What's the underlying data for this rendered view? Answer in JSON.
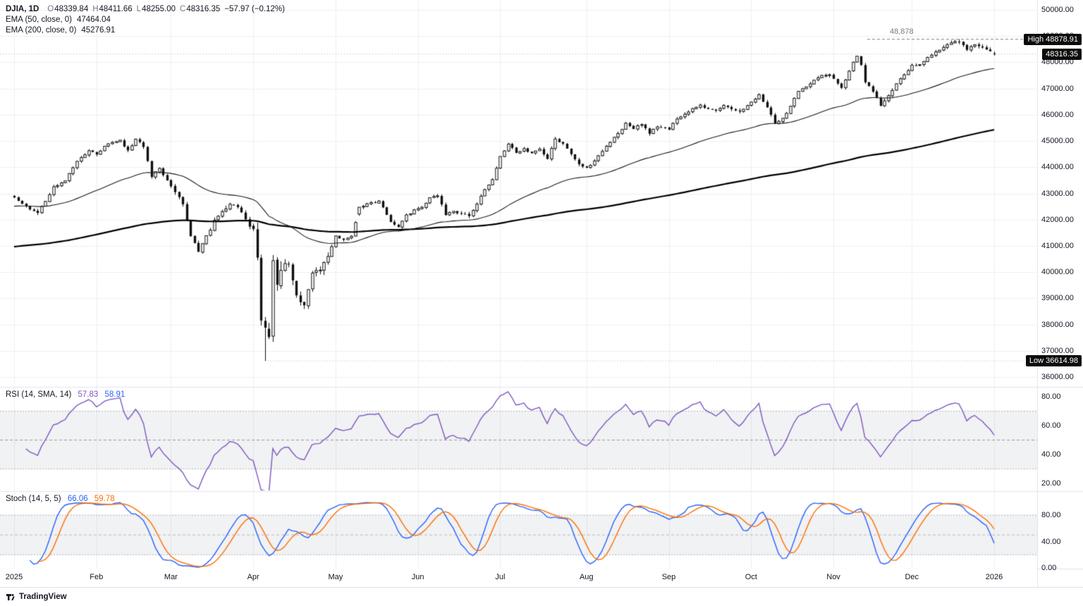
{
  "legend": {
    "symbol": "DJIA, 1D",
    "o_label": "O",
    "o": "48339.84",
    "h_label": "H",
    "h": "48411.66",
    "l_label": "L",
    "l": "48255.00",
    "c_label": "C",
    "c": "48316.35",
    "change": "−57.97 (−0.12%)",
    "ema50_label": "EMA (50, close, 0)",
    "ema50_value": "47464.04",
    "ema200_label": "EMA (200, close, 0)",
    "ema200_value": "45276.91"
  },
  "rsi_panel": {
    "label": "RSI (14, SMA, 14)",
    "value1": "57.83",
    "value2": "58.91",
    "axis": [
      {
        "v": 80,
        "label": "80.00"
      },
      {
        "v": 60,
        "label": "60.00"
      },
      {
        "v": 40,
        "label": "40.00"
      },
      {
        "v": 20,
        "label": "20.00"
      }
    ]
  },
  "stoch_panel": {
    "label": "Stoch (14, 5, 5)",
    "k_value": "66.06",
    "d_value": "59.78",
    "axis": [
      {
        "v": 80,
        "label": "80.00"
      },
      {
        "v": 40,
        "label": "40.00"
      },
      {
        "v": 0,
        "label": "0.00"
      }
    ]
  },
  "price_axis": {
    "ticks": [
      {
        "p": 50000,
        "label": "50000.00"
      },
      {
        "p": 49000,
        "label": "49000.00"
      },
      {
        "p": 48000,
        "label": "48000.00"
      },
      {
        "p": 47000,
        "label": "47000.00"
      },
      {
        "p": 46000,
        "label": "46000.00"
      },
      {
        "p": 45000,
        "label": "45000.00"
      },
      {
        "p": 44000,
        "label": "44000.00"
      },
      {
        "p": 43000,
        "label": "43000.00"
      },
      {
        "p": 42000,
        "label": "42000.00"
      },
      {
        "p": 41000,
        "label": "41000.00"
      },
      {
        "p": 40000,
        "label": "40000.00"
      },
      {
        "p": 39000,
        "label": "39000.00"
      },
      {
        "p": 38000,
        "label": "38000.00"
      },
      {
        "p": 37000,
        "label": "37000.00"
      },
      {
        "p": 36000,
        "label": "36000.00"
      }
    ],
    "high_badge": "High 48878.91",
    "last_badge": "48316.35",
    "low_badge": "Low 36614.98"
  },
  "annotations": {
    "high_level_label": "48,878"
  },
  "time_axis": {
    "labels": [
      {
        "day": 0,
        "label": "2025"
      },
      {
        "day": 21,
        "label": "Feb"
      },
      {
        "day": 40,
        "label": "Mar"
      },
      {
        "day": 61,
        "label": "Apr"
      },
      {
        "day": 82,
        "label": "May"
      },
      {
        "day": 103,
        "label": "Jun"
      },
      {
        "day": 124,
        "label": "Jul"
      },
      {
        "day": 146,
        "label": "Aug"
      },
      {
        "day": 167,
        "label": "Sep"
      },
      {
        "day": 188,
        "label": "Oct"
      },
      {
        "day": 209,
        "label": "Nov"
      },
      {
        "day": 229,
        "label": "Dec"
      },
      {
        "day": 250,
        "label": "2026"
      }
    ]
  },
  "footer": {
    "brand": "TradingView"
  },
  "colors": {
    "candle": "#0f0f0f",
    "up_fill": "#ffffff",
    "ema50": "#1b1b1b",
    "ema200": "#000000",
    "rsi": "#7e57c2",
    "stoch_k": "#2962ff",
    "stoch_d": "#ff6d00",
    "grid": "#f0f0f0",
    "separator": "#e0e3eb",
    "level_line": "#787b86",
    "badge_bg": "#0c0c0c"
  },
  "chart_data": {
    "type": "candlestick",
    "symbol": "DJIA",
    "interval": "1D",
    "title": "DJIA, 1D",
    "last_bar": {
      "open": 48339.84,
      "high": 48411.66,
      "low": 48255.0,
      "close": 48316.35,
      "change": -57.97,
      "change_pct": -0.12
    },
    "range_high": 48878.91,
    "range_low": 36614.98,
    "y_axis": {
      "min": 36000,
      "max": 50000,
      "tick_step": 1000
    },
    "x_axis": {
      "start": "Jan 2025",
      "end": "Jan 2026"
    },
    "overlays": [
      {
        "name": "EMA (50, close, 0)",
        "current": 47464.04
      },
      {
        "name": "EMA (200, close, 0)",
        "current": 45276.91
      }
    ],
    "indicators": [
      {
        "name": "RSI",
        "params": "14, SMA, 14",
        "values": [
          57.83,
          58.91
        ],
        "range": [
          20,
          80
        ],
        "bands": [
          30,
          70
        ],
        "color": "#7e57c2"
      },
      {
        "name": "Stoch",
        "params": "14, 5, 5",
        "values": [
          66.06,
          59.78
        ],
        "range": [
          0,
          100
        ],
        "bands": [
          20,
          80
        ],
        "colors": [
          "#2962ff",
          "#ff6d00"
        ]
      }
    ],
    "close_anchors": [
      [
        0,
        42850
      ],
      [
        3,
        42500
      ],
      [
        6,
        42250
      ],
      [
        8,
        42700
      ],
      [
        10,
        43250
      ],
      [
        13,
        43500
      ],
      [
        16,
        44250
      ],
      [
        19,
        44600
      ],
      [
        21,
        44500
      ],
      [
        24,
        44900
      ],
      [
        27,
        45000
      ],
      [
        29,
        44650
      ],
      [
        31,
        45050
      ],
      [
        33,
        44800
      ],
      [
        35,
        43650
      ],
      [
        37,
        43950
      ],
      [
        39,
        43500
      ],
      [
        40,
        43250
      ],
      [
        43,
        42600
      ],
      [
        45,
        41350
      ],
      [
        47,
        40800
      ],
      [
        49,
        41350
      ],
      [
        51,
        41950
      ],
      [
        53,
        42300
      ],
      [
        55,
        42600
      ],
      [
        57,
        42450
      ],
      [
        59,
        42050
      ],
      [
        61,
        41500
      ],
      [
        62,
        40550
      ],
      [
        63,
        38300
      ],
      [
        64,
        37900
      ],
      [
        65,
        37600
      ],
      [
        66,
        40550
      ],
      [
        67,
        39600
      ],
      [
        68,
        40150
      ],
      [
        70,
        40350
      ],
      [
        72,
        39150
      ],
      [
        74,
        38700
      ],
      [
        76,
        39950
      ],
      [
        78,
        40100
      ],
      [
        80,
        40600
      ],
      [
        82,
        41350
      ],
      [
        84,
        41250
      ],
      [
        86,
        41400
      ],
      [
        88,
        42450
      ],
      [
        90,
        42600
      ],
      [
        93,
        42700
      ],
      [
        96,
        41900
      ],
      [
        98,
        41700
      ],
      [
        100,
        42150
      ],
      [
        102,
        42350
      ],
      [
        104,
        42500
      ],
      [
        106,
        42800
      ],
      [
        108,
        42900
      ],
      [
        110,
        42200
      ],
      [
        112,
        42300
      ],
      [
        114,
        42250
      ],
      [
        116,
        42150
      ],
      [
        118,
        42600
      ],
      [
        120,
        43150
      ],
      [
        122,
        43550
      ],
      [
        124,
        44400
      ],
      [
        126,
        44900
      ],
      [
        128,
        44550
      ],
      [
        130,
        44700
      ],
      [
        132,
        44500
      ],
      [
        134,
        44700
      ],
      [
        136,
        44350
      ],
      [
        138,
        45050
      ],
      [
        140,
        44900
      ],
      [
        142,
        44500
      ],
      [
        144,
        44150
      ],
      [
        146,
        43950
      ],
      [
        148,
        44250
      ],
      [
        150,
        44600
      ],
      [
        152,
        44950
      ],
      [
        154,
        45300
      ],
      [
        156,
        45650
      ],
      [
        158,
        45450
      ],
      [
        160,
        45650
      ],
      [
        162,
        45300
      ],
      [
        164,
        45550
      ],
      [
        167,
        45450
      ],
      [
        169,
        45850
      ],
      [
        171,
        46000
      ],
      [
        173,
        46200
      ],
      [
        175,
        46350
      ],
      [
        177,
        46200
      ],
      [
        179,
        46150
      ],
      [
        181,
        46350
      ],
      [
        183,
        46200
      ],
      [
        185,
        46150
      ],
      [
        187,
        46350
      ],
      [
        188,
        46500
      ],
      [
        190,
        46750
      ],
      [
        192,
        46300
      ],
      [
        194,
        45650
      ],
      [
        196,
        45850
      ],
      [
        198,
        46300
      ],
      [
        200,
        46900
      ],
      [
        202,
        47100
      ],
      [
        204,
        47300
      ],
      [
        206,
        47500
      ],
      [
        208,
        47550
      ],
      [
        209,
        47350
      ],
      [
        211,
        47000
      ],
      [
        213,
        47700
      ],
      [
        215,
        48250
      ],
      [
        216,
        47900
      ],
      [
        217,
        47250
      ],
      [
        219,
        46900
      ],
      [
        221,
        46350
      ],
      [
        223,
        46700
      ],
      [
        225,
        47200
      ],
      [
        227,
        47550
      ],
      [
        229,
        47850
      ],
      [
        231,
        47950
      ],
      [
        233,
        48150
      ],
      [
        235,
        48400
      ],
      [
        237,
        48550
      ],
      [
        239,
        48750
      ],
      [
        241,
        48820
      ],
      [
        243,
        48500
      ],
      [
        245,
        48680
      ],
      [
        247,
        48580
      ],
      [
        249,
        48420
      ],
      [
        250,
        48316.35
      ]
    ]
  }
}
